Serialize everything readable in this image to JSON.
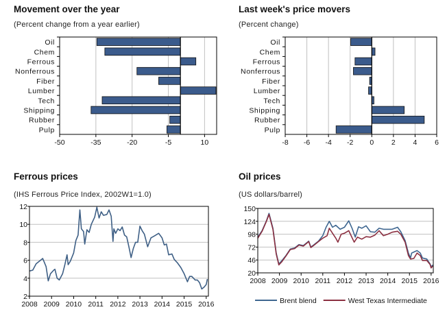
{
  "chart_data": [
    {
      "type": "bar",
      "orientation": "horizontal",
      "title": "Movement over the year",
      "subtitle": "(Percent change from a year earlier)",
      "categories": [
        "Oil",
        "Chem",
        "Ferrous",
        "Nonferrous",
        "Fiber",
        "Lumber",
        "Tech",
        "Shipping",
        "Rubber",
        "Pulp"
      ],
      "values": [
        -34.6,
        -31.3,
        6.4,
        -18.0,
        -9.0,
        14.7,
        -32.4,
        -37.0,
        -4.4,
        -5.6
      ],
      "xlim": [
        -50,
        15
      ],
      "xticks": [
        -50,
        -35,
        -20,
        -5,
        10
      ],
      "grid": "vertical",
      "bar_color": "#3b5b8c"
    },
    {
      "type": "bar",
      "orientation": "horizontal",
      "title": "Last week's price movers",
      "subtitle": "(Percent change)",
      "categories": [
        "Oil",
        "Chem",
        "Ferrous",
        "Nonferrous",
        "Fiber",
        "Lumber",
        "Tech",
        "Shipping",
        "Rubber",
        "Pulp"
      ],
      "values": [
        -1.95,
        0.3,
        -1.55,
        -1.7,
        -0.2,
        -0.3,
        0.2,
        3.0,
        4.85,
        -3.3
      ],
      "xlim": [
        -8,
        6
      ],
      "xticks": [
        -8,
        -6,
        -4,
        -2,
        0,
        2,
        4,
        6
      ],
      "grid": "vertical",
      "bar_color": "#3b5b8c"
    },
    {
      "type": "line",
      "title": "Ferrous prices",
      "subtitle": "(IHS Ferrous Price Index, 2002W1=1.0)",
      "xlim": [
        2008,
        2016.1
      ],
      "ylim": [
        2,
        12
      ],
      "xticks": [
        2008,
        2009,
        2010,
        2011,
        2012,
        2013,
        2014,
        2015,
        2016
      ],
      "yticks": [
        2,
        4,
        6,
        8,
        10,
        12
      ],
      "grid": "horizontal",
      "series": [
        {
          "color": "#3e5f85",
          "x": [
            2008.0,
            2008.15,
            2008.3,
            2008.5,
            2008.6,
            2008.75,
            2008.85,
            2008.95,
            2009.1,
            2009.15,
            2009.25,
            2009.35,
            2009.5,
            2009.6,
            2009.7,
            2009.75,
            2009.85,
            2010.0,
            2010.1,
            2010.2,
            2010.28,
            2010.35,
            2010.45,
            2010.5,
            2010.6,
            2010.7,
            2010.8,
            2010.95,
            2011.05,
            2011.15,
            2011.25,
            2011.35,
            2011.5,
            2011.6,
            2011.7,
            2011.78,
            2011.82,
            2011.9,
            2012.0,
            2012.1,
            2012.2,
            2012.3,
            2012.4,
            2012.5,
            2012.6,
            2012.7,
            2012.8,
            2012.9,
            2013.0,
            2013.1,
            2013.2,
            2013.35,
            2013.5,
            2013.65,
            2013.85,
            2014.0,
            2014.1,
            2014.2,
            2014.3,
            2014.45,
            2014.55,
            2014.7,
            2014.85,
            2015.0,
            2015.15,
            2015.25,
            2015.35,
            2015.5,
            2015.6,
            2015.7,
            2015.8,
            2015.9,
            2016.0,
            2016.05
          ],
          "y": [
            4.8,
            4.9,
            5.6,
            6.0,
            6.2,
            5.3,
            3.7,
            4.5,
            4.9,
            5.0,
            4.0,
            3.8,
            4.5,
            5.5,
            6.6,
            5.5,
            5.9,
            6.8,
            8.2,
            8.8,
            11.6,
            9.5,
            9.2,
            7.8,
            9.4,
            9.1,
            10.0,
            10.8,
            11.9,
            10.7,
            11.4,
            11.0,
            11.1,
            11.6,
            10.9,
            8.1,
            9.5,
            9.0,
            9.5,
            9.3,
            9.7,
            8.8,
            8.6,
            7.5,
            6.3,
            7.3,
            8.0,
            8.0,
            9.8,
            9.3,
            8.9,
            7.5,
            8.5,
            8.7,
            9.0,
            8.5,
            7.7,
            7.8,
            6.6,
            6.7,
            6.1,
            5.7,
            5.2,
            4.5,
            3.6,
            4.2,
            4.2,
            3.8,
            3.8,
            3.5,
            2.8,
            3.0,
            3.3,
            3.9
          ]
        }
      ]
    },
    {
      "type": "line",
      "title": "Oil prices",
      "subtitle": "(US dollars/barrel)",
      "xlim": [
        2008,
        2016.1
      ],
      "ylim": [
        20,
        150
      ],
      "xticks": [
        2008,
        2009,
        2010,
        2011,
        2012,
        2013,
        2014,
        2015,
        2016
      ],
      "yticks": [
        20,
        46,
        72,
        98,
        124,
        150
      ],
      "grid": "horizontal",
      "legend": "bottom",
      "series": [
        {
          "name": "Brent blend",
          "color": "#3e6690",
          "x": [
            2008.0,
            2008.2,
            2008.4,
            2008.52,
            2008.7,
            2008.85,
            2008.97,
            2009.1,
            2009.3,
            2009.5,
            2009.7,
            2009.9,
            2010.1,
            2010.35,
            2010.45,
            2010.6,
            2010.8,
            2011.0,
            2011.15,
            2011.3,
            2011.45,
            2011.6,
            2011.8,
            2012.0,
            2012.2,
            2012.35,
            2012.5,
            2012.65,
            2012.8,
            2013.0,
            2013.2,
            2013.4,
            2013.6,
            2013.8,
            2014.0,
            2014.2,
            2014.45,
            2014.6,
            2014.8,
            2014.95,
            2015.05,
            2015.1,
            2015.35,
            2015.5,
            2015.6,
            2015.8,
            2015.95,
            2016.0,
            2016.08
          ],
          "y": [
            92,
            105,
            125,
            140,
            110,
            60,
            38,
            44,
            55,
            68,
            70,
            77,
            75,
            84,
            72,
            77,
            84,
            95,
            112,
            124,
            112,
            116,
            108,
            112,
            125,
            110,
            92,
            113,
            110,
            115,
            103,
            102,
            110,
            108,
            108,
            108,
            112,
            103,
            85,
            60,
            50,
            60,
            65,
            60,
            50,
            48,
            38,
            32,
            36
          ]
        },
        {
          "name": "West Texas Intermediate",
          "color": "#8b2f40",
          "x": [
            2008.0,
            2008.2,
            2008.4,
            2008.52,
            2008.7,
            2008.85,
            2008.97,
            2009.1,
            2009.3,
            2009.5,
            2009.7,
            2009.9,
            2010.1,
            2010.35,
            2010.45,
            2010.6,
            2010.8,
            2011.0,
            2011.2,
            2011.3,
            2011.45,
            2011.6,
            2011.7,
            2011.85,
            2012.0,
            2012.2,
            2012.45,
            2012.6,
            2012.8,
            2013.0,
            2013.2,
            2013.4,
            2013.6,
            2013.8,
            2014.0,
            2014.2,
            2014.45,
            2014.6,
            2014.8,
            2014.95,
            2015.05,
            2015.2,
            2015.35,
            2015.5,
            2015.6,
            2015.8,
            2015.95,
            2016.0,
            2016.08
          ],
          "y": [
            90,
            104,
            124,
            138,
            108,
            58,
            36,
            42,
            54,
            67,
            69,
            76,
            74,
            83,
            71,
            76,
            83,
            90,
            95,
            110,
            100,
            90,
            82,
            98,
            100,
            105,
            82,
            92,
            88,
            93,
            92,
            96,
            105,
            95,
            98,
            102,
            104,
            98,
            82,
            55,
            48,
            49,
            60,
            55,
            45,
            45,
            37,
            30,
            34
          ]
        }
      ]
    }
  ]
}
